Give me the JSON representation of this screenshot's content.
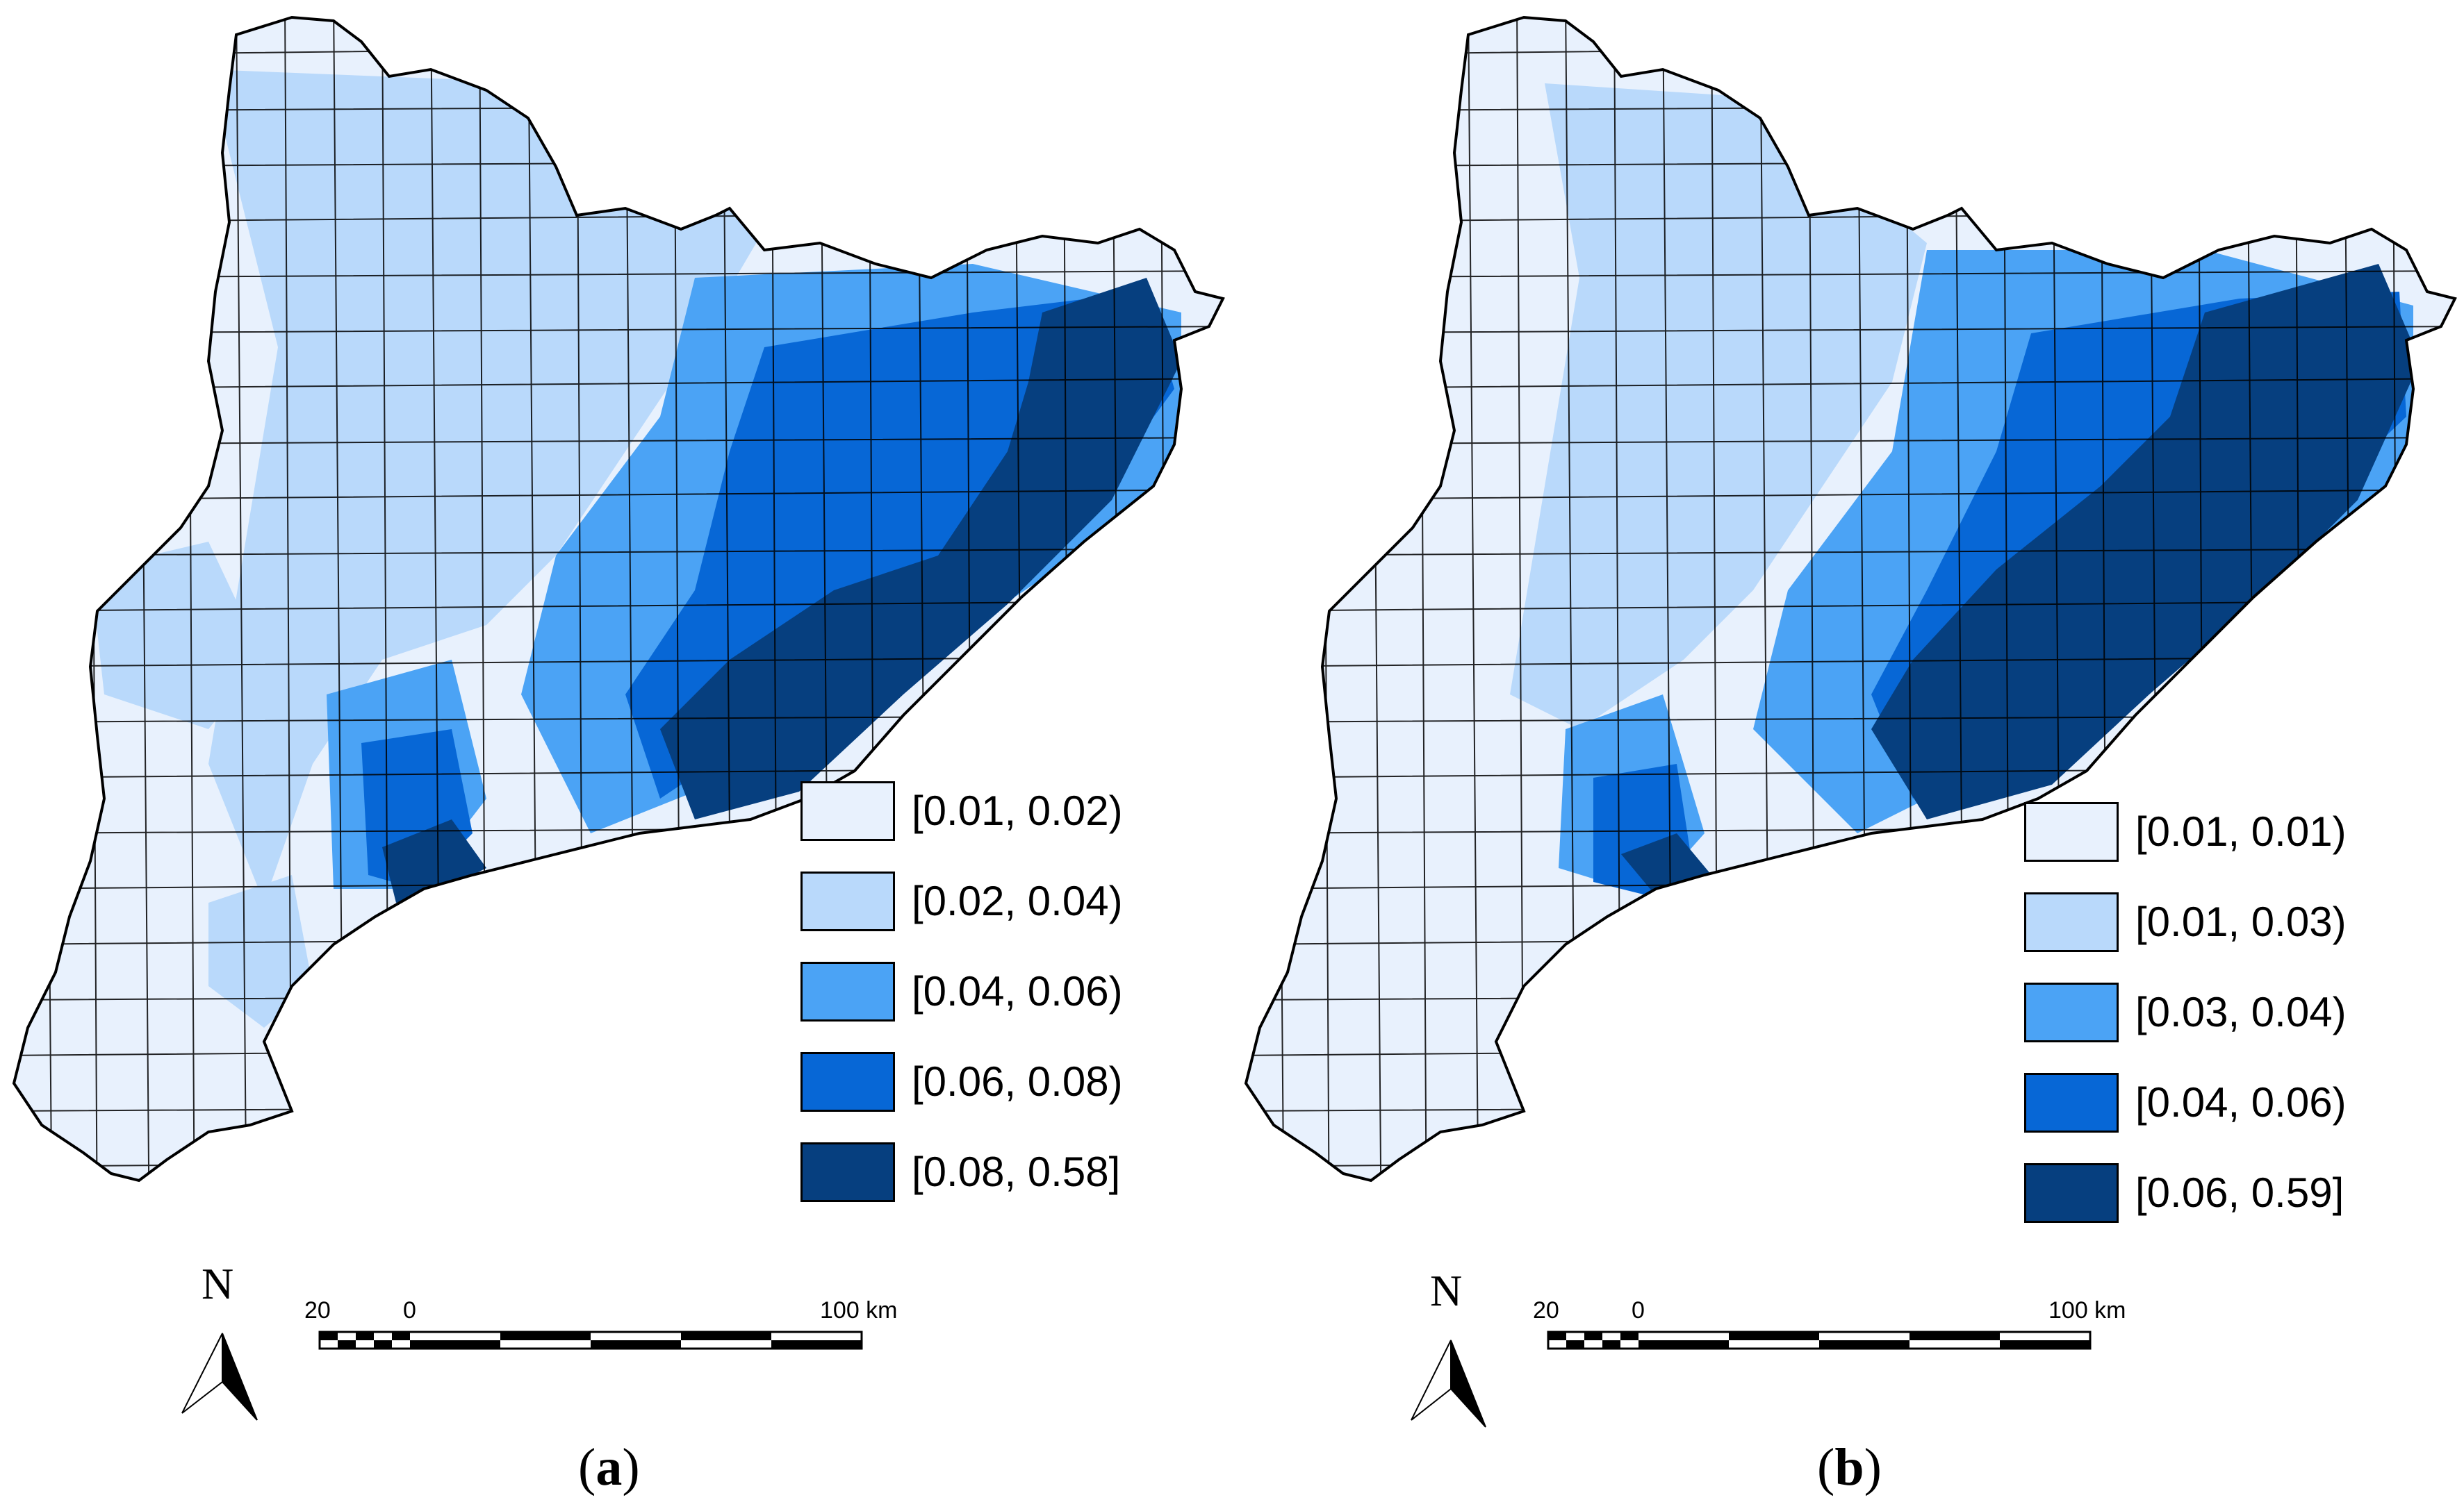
{
  "colors": {
    "class1": "#e8f1fd",
    "class2": "#b9d9fb",
    "class3": "#4ba3f5",
    "class4": "#0767d6",
    "class5": "#063f7f",
    "boundary": "#000000"
  },
  "panels": [
    {
      "id": "a",
      "caption_open": "(",
      "caption_letter": "a",
      "caption_close": ")",
      "legend": [
        {
          "label": "[0.01, 0.02)",
          "color": "#e8f1fd"
        },
        {
          "label": "[0.02, 0.04)",
          "color": "#b9d9fb"
        },
        {
          "label": "[0.04, 0.06)",
          "color": "#4ba3f5"
        },
        {
          "label": "[0.06, 0.08)",
          "color": "#0767d6"
        },
        {
          "label": "[0.08, 0.58]",
          "color": "#063f7f"
        }
      ],
      "north": "N",
      "scale": {
        "left": "20",
        "zero": "0",
        "right": "100 km"
      }
    },
    {
      "id": "b",
      "caption_open": "(",
      "caption_letter": "b",
      "caption_close": ")",
      "legend": [
        {
          "label": "[0.01, 0.01)",
          "color": "#e8f1fd"
        },
        {
          "label": "[0.01, 0.03)",
          "color": "#b9d9fb"
        },
        {
          "label": "[0.03, 0.04)",
          "color": "#4ba3f5"
        },
        {
          "label": "[0.04, 0.06)",
          "color": "#0767d6"
        },
        {
          "label": "[0.06, 0.59]",
          "color": "#063f7f"
        }
      ],
      "north": "N",
      "scale": {
        "left": "20",
        "zero": "0",
        "right": "100 km"
      }
    }
  ]
}
